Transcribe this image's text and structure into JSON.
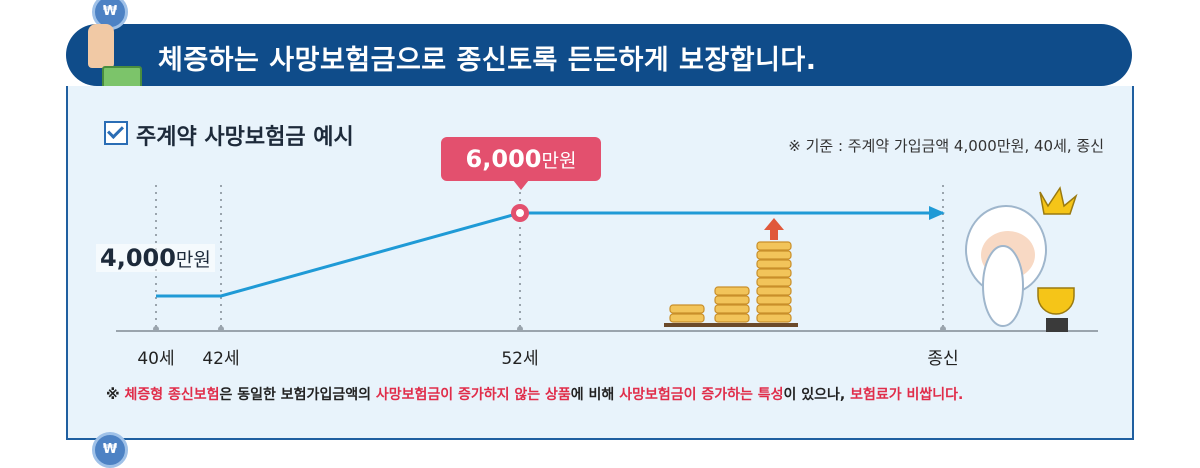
{
  "banner": {
    "title": "체증하는 사망보험금으로 종신토록 든든하게 보장합니다."
  },
  "coin_symbol": "₩",
  "section": {
    "title": "주계약 사망보험금 예시"
  },
  "basis_note": "※ 기준 : 주계약 가입금액 4,000만원, 40세, 종신",
  "callout": {
    "value": "6,000",
    "unit": "만원"
  },
  "start_label": {
    "value": "4,000",
    "unit": "만원"
  },
  "footnote": {
    "prefix": "※ ",
    "p1": "체증형 종신보험",
    "t1": "은 동일한 보험가입금액의 ",
    "p2": "사망보험금이 증가하지 않는 상품",
    "t2": "에 비해 ",
    "p3": "사망보험금이 증가하는 특성",
    "t3": "이 있으나, ",
    "p4": "보험료가 비쌉니다."
  },
  "colors": {
    "line": "#1f9ad6",
    "banner": "#0f4c8a",
    "callout": "#e3506e",
    "emphasis": "#e02d4a",
    "coins": "#f2c45a"
  },
  "chart_data": {
    "type": "line",
    "title": "주계약 사망보험금 예시",
    "x": [
      "40세",
      "42세",
      "52세",
      "종신"
    ],
    "series": [
      {
        "values": [
          4000,
          4000,
          6000,
          6000
        ]
      }
    ],
    "ylabel": "",
    "xlabel": "",
    "unit": "만원",
    "grid": false
  }
}
